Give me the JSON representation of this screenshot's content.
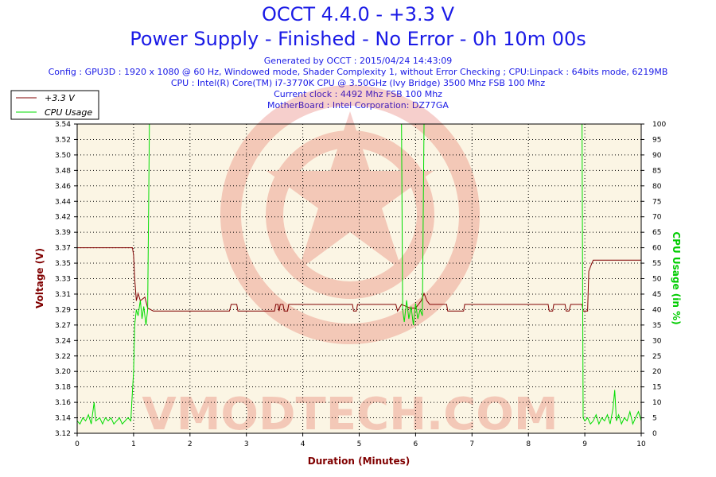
{
  "header": {
    "title": "OCCT 4.4.0 - +3.3 V",
    "subtitle": "Power Supply - Finished - No Error - 0h 10m 00s",
    "info": [
      "Generated by OCCT : 2015/04/24 14:43:09",
      "Config : GPU3D : 1920 x 1080 @ 60 Hz, Windowed mode, Shader Complexity 1, without Error Checking ; CPU:Linpack : 64bits mode, 6219MB",
      "CPU : Intel(R) Core(TM) i7-3770K CPU @ 3.50GHz (Ivy Bridge) 3500 Mhz FSB 100 Mhz",
      "Current clock : 4492 Mhz FSB 100 Mhz",
      "MotherBoard : Intel Corporation: DZ77GA"
    ]
  },
  "watermark": "VMODTECH.COM",
  "chart_data": {
    "type": "line",
    "xlabel": "Duration (Minutes)",
    "ylabel_left": "Voltage (V)",
    "ylabel_right": "CPU Usage (in %)",
    "xlim": [
      0,
      10
    ],
    "ylim_left": [
      3.12,
      3.54
    ],
    "ylim_right": [
      0,
      100
    ],
    "x_ticks": [
      "0",
      "1",
      "2",
      "3",
      "4",
      "5",
      "6",
      "7",
      "8",
      "9",
      "10"
    ],
    "y_left_ticks": [
      "3.12",
      "3.14",
      "3.16",
      "3.18",
      "3.20",
      "3.22",
      "3.24",
      "3.27",
      "3.29",
      "3.31",
      "3.33",
      "3.35",
      "3.37",
      "3.39",
      "3.42",
      "3.44",
      "3.46",
      "3.48",
      "3.50",
      "3.52",
      "3.54"
    ],
    "y_right_ticks": [
      "0",
      "5",
      "10",
      "15",
      "20",
      "25",
      "30",
      "35",
      "40",
      "45",
      "50",
      "55",
      "60",
      "65",
      "70",
      "75",
      "80",
      "85",
      "90",
      "95",
      "100"
    ],
    "grid": true,
    "legend_position": "top-left",
    "series": [
      {
        "name": "+3.3 V",
        "color": "#800000",
        "axis": "left",
        "points": [
          [
            0,
            3.372
          ],
          [
            0.98,
            3.372
          ],
          [
            1.0,
            3.362
          ],
          [
            1.02,
            3.33
          ],
          [
            1.05,
            3.3
          ],
          [
            1.08,
            3.31
          ],
          [
            1.12,
            3.3
          ],
          [
            1.2,
            3.305
          ],
          [
            1.25,
            3.29
          ],
          [
            1.35,
            3.286
          ],
          [
            2.7,
            3.286
          ],
          [
            2.73,
            3.295
          ],
          [
            2.83,
            3.295
          ],
          [
            2.85,
            3.286
          ],
          [
            3.5,
            3.286
          ],
          [
            3.52,
            3.295
          ],
          [
            3.56,
            3.295
          ],
          [
            3.58,
            3.286
          ],
          [
            3.6,
            3.295
          ],
          [
            3.65,
            3.295
          ],
          [
            3.67,
            3.286
          ],
          [
            3.73,
            3.286
          ],
          [
            3.75,
            3.295
          ],
          [
            4.88,
            3.295
          ],
          [
            4.9,
            3.286
          ],
          [
            4.95,
            3.286
          ],
          [
            4.97,
            3.295
          ],
          [
            5.65,
            3.295
          ],
          [
            5.68,
            3.286
          ],
          [
            5.75,
            3.295
          ],
          [
            5.9,
            3.29
          ],
          [
            6.0,
            3.29
          ],
          [
            6.1,
            3.3
          ],
          [
            6.15,
            3.31
          ],
          [
            6.2,
            3.3
          ],
          [
            6.25,
            3.295
          ],
          [
            6.55,
            3.295
          ],
          [
            6.57,
            3.286
          ],
          [
            6.85,
            3.286
          ],
          [
            6.87,
            3.295
          ],
          [
            8.35,
            3.295
          ],
          [
            8.37,
            3.286
          ],
          [
            8.43,
            3.286
          ],
          [
            8.45,
            3.295
          ],
          [
            8.65,
            3.295
          ],
          [
            8.67,
            3.286
          ],
          [
            8.72,
            3.286
          ],
          [
            8.75,
            3.295
          ],
          [
            8.95,
            3.295
          ],
          [
            8.97,
            3.286
          ],
          [
            9.05,
            3.286
          ],
          [
            9.07,
            3.34
          ],
          [
            9.12,
            3.35
          ],
          [
            9.15,
            3.355
          ],
          [
            10,
            3.355
          ]
        ]
      },
      {
        "name": "CPU Usage",
        "color": "#00dd00",
        "axis": "right",
        "points": [
          [
            0,
            4
          ],
          [
            0.05,
            3
          ],
          [
            0.1,
            5
          ],
          [
            0.15,
            4
          ],
          [
            0.2,
            6
          ],
          [
            0.25,
            3
          ],
          [
            0.3,
            10
          ],
          [
            0.33,
            4
          ],
          [
            0.4,
            5
          ],
          [
            0.45,
            3
          ],
          [
            0.5,
            5
          ],
          [
            0.55,
            4
          ],
          [
            0.6,
            5
          ],
          [
            0.65,
            3
          ],
          [
            0.7,
            4
          ],
          [
            0.75,
            5
          ],
          [
            0.8,
            3
          ],
          [
            0.85,
            4
          ],
          [
            0.9,
            5
          ],
          [
            0.95,
            4
          ],
          [
            1.0,
            20
          ],
          [
            1.02,
            35
          ],
          [
            1.05,
            40
          ],
          [
            1.08,
            38
          ],
          [
            1.12,
            43
          ],
          [
            1.15,
            37
          ],
          [
            1.18,
            41
          ],
          [
            1.22,
            35
          ],
          [
            1.25,
            40
          ],
          [
            1.28,
            100
          ],
          [
            5.75,
            100
          ],
          [
            5.77,
            40
          ],
          [
            5.8,
            36
          ],
          [
            5.84,
            43
          ],
          [
            5.88,
            37
          ],
          [
            5.92,
            41
          ],
          [
            5.96,
            35
          ],
          [
            6.0,
            42
          ],
          [
            6.04,
            37
          ],
          [
            6.08,
            40
          ],
          [
            6.12,
            38
          ],
          [
            6.15,
            100
          ],
          [
            8.95,
            100
          ],
          [
            8.97,
            5
          ],
          [
            9.0,
            4
          ],
          [
            9.05,
            5
          ],
          [
            9.1,
            3
          ],
          [
            9.15,
            4
          ],
          [
            9.2,
            6
          ],
          [
            9.25,
            3
          ],
          [
            9.3,
            5
          ],
          [
            9.35,
            4
          ],
          [
            9.4,
            6
          ],
          [
            9.45,
            3
          ],
          [
            9.5,
            8
          ],
          [
            9.53,
            14
          ],
          [
            9.56,
            4
          ],
          [
            9.6,
            6
          ],
          [
            9.65,
            3
          ],
          [
            9.7,
            5
          ],
          [
            9.75,
            4
          ],
          [
            9.8,
            7
          ],
          [
            9.85,
            3
          ],
          [
            9.9,
            5
          ],
          [
            9.95,
            7
          ],
          [
            10,
            4
          ]
        ]
      }
    ]
  }
}
